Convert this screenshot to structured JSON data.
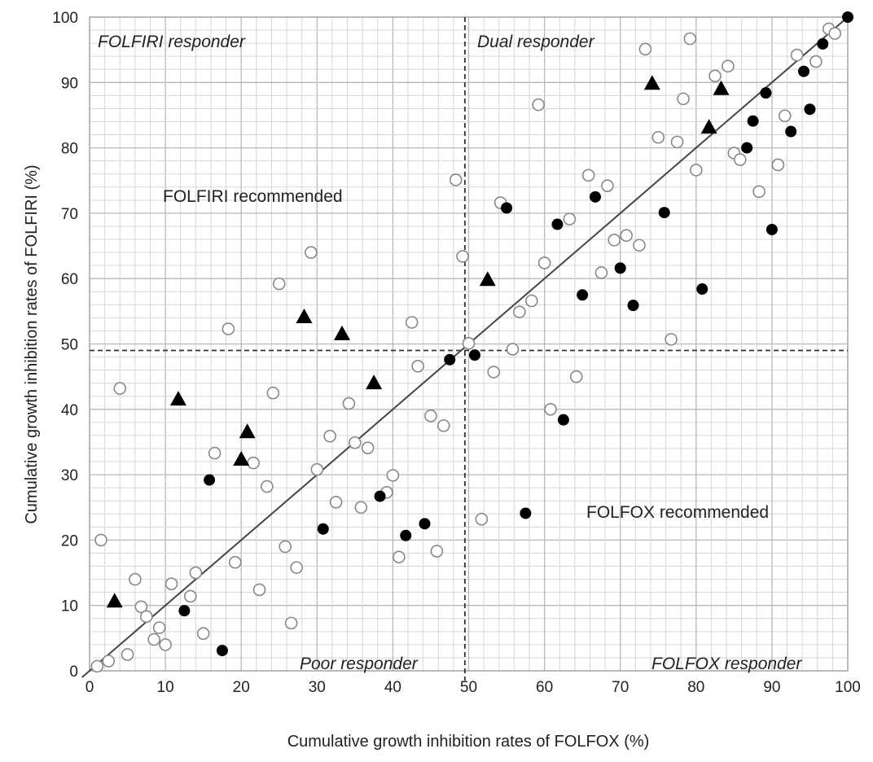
{
  "chart_data": {
    "type": "scatter",
    "title": "",
    "xlabel": "Cumulative growth inhibition rates of FOLFOX (%)",
    "ylabel": "Cumulative growth inhibition rates of FOLFIRI (%)",
    "xlim": [
      0,
      100
    ],
    "ylim": [
      0,
      100
    ],
    "xticks": [
      "0",
      "10",
      "20",
      "30",
      "40",
      "50",
      "60",
      "70",
      "80",
      "90",
      "100"
    ],
    "yticks": [
      "0",
      "10",
      "20",
      "30",
      "40",
      "50",
      "60",
      "70",
      "80",
      "90",
      "100"
    ],
    "grid": true,
    "thresholds": {
      "x": 49.5,
      "y": 49
    },
    "diagonal": [
      [
        0,
        0
      ],
      [
        100,
        100
      ]
    ],
    "annotations": {
      "folfiri_responder": "FOLFIRI responder",
      "dual_responder": "Dual responder",
      "folfiri_recommended": "FOLFIRI recommended",
      "folfox_recommended": "FOLFOX recommended",
      "poor_responder": "Poor responder",
      "folfox_responder": "FOLFOX responder"
    },
    "series": [
      {
        "marker": "open-circle",
        "color": "#888888",
        "points": [
          [
            1,
            0.7
          ],
          [
            1.5,
            20
          ],
          [
            2.5,
            1.5
          ],
          [
            4,
            43.2
          ],
          [
            5,
            2.5
          ],
          [
            6,
            14
          ],
          [
            6.8,
            9.8
          ],
          [
            7.5,
            8.3
          ],
          [
            8.5,
            4.8
          ],
          [
            9.2,
            6.6
          ],
          [
            10,
            4
          ],
          [
            10.8,
            13.3
          ],
          [
            13.3,
            11.4
          ],
          [
            14,
            15
          ],
          [
            15,
            5.7
          ],
          [
            16.5,
            33.3
          ],
          [
            18.3,
            52.3
          ],
          [
            19.2,
            16.6
          ],
          [
            21.6,
            31.8
          ],
          [
            22.4,
            12.4
          ],
          [
            23.4,
            28.2
          ],
          [
            24.2,
            42.5
          ],
          [
            25,
            59.2
          ],
          [
            25.8,
            19
          ],
          [
            26.6,
            7.3
          ],
          [
            27.3,
            15.8
          ],
          [
            29.2,
            64
          ],
          [
            30,
            30.8
          ],
          [
            31.7,
            35.9
          ],
          [
            32.5,
            25.8
          ],
          [
            34.2,
            40.9
          ],
          [
            35,
            34.9
          ],
          [
            35.8,
            25
          ],
          [
            36.7,
            34.1
          ],
          [
            39.2,
            27.3
          ],
          [
            40,
            29.9
          ],
          [
            40.8,
            17.4
          ],
          [
            42.5,
            53.3
          ],
          [
            43.3,
            46.6
          ],
          [
            45,
            39
          ],
          [
            45.8,
            18.3
          ],
          [
            46.7,
            37.5
          ],
          [
            48.3,
            75.1
          ],
          [
            49.2,
            63.4
          ],
          [
            50,
            50.1
          ],
          [
            51.7,
            23.2
          ],
          [
            53.3,
            45.7
          ],
          [
            54.2,
            71.6
          ],
          [
            55.8,
            49.2
          ],
          [
            56.7,
            54.9
          ],
          [
            58.3,
            56.6
          ],
          [
            59.2,
            86.6
          ],
          [
            60,
            62.4
          ],
          [
            60.8,
            40
          ],
          [
            63.3,
            69.1
          ],
          [
            64.2,
            45
          ],
          [
            65.8,
            75.8
          ],
          [
            67.5,
            60.9
          ],
          [
            68.3,
            74.2
          ],
          [
            69.2,
            65.9
          ],
          [
            70.8,
            66.6
          ],
          [
            72.5,
            65.1
          ],
          [
            73.3,
            95.1
          ],
          [
            75,
            81.6
          ],
          [
            76.7,
            50.7
          ],
          [
            77.5,
            80.9
          ],
          [
            78.3,
            87.5
          ],
          [
            79.2,
            96.7
          ],
          [
            80,
            76.6
          ],
          [
            82.5,
            91
          ],
          [
            84.2,
            92.5
          ],
          [
            85,
            79.2
          ],
          [
            85.8,
            78.2
          ],
          [
            88.3,
            73.3
          ],
          [
            90.8,
            77.4
          ],
          [
            91.7,
            84.9
          ],
          [
            93.3,
            94.2
          ],
          [
            95.8,
            93.2
          ],
          [
            97.5,
            98.2
          ],
          [
            98.3,
            97.5
          ]
        ]
      },
      {
        "marker": "filled-circle",
        "color": "#000000",
        "points": [
          [
            12.5,
            9.2
          ],
          [
            15.8,
            29.2
          ],
          [
            17.5,
            3.1
          ],
          [
            30.8,
            21.7
          ],
          [
            38.3,
            26.7
          ],
          [
            41.7,
            20.7
          ],
          [
            44.2,
            22.5
          ],
          [
            47.5,
            47.6
          ],
          [
            50.8,
            48.3
          ],
          [
            55,
            70.8
          ],
          [
            57.5,
            24.1
          ],
          [
            61.7,
            68.3
          ],
          [
            62.5,
            38.4
          ],
          [
            65,
            57.5
          ],
          [
            66.7,
            72.5
          ],
          [
            70,
            61.6
          ],
          [
            71.7,
            55.9
          ],
          [
            75.8,
            70.1
          ],
          [
            80.8,
            58.4
          ],
          [
            86.7,
            80
          ],
          [
            87.5,
            84.1
          ],
          [
            89.2,
            88.4
          ],
          [
            90,
            67.5
          ],
          [
            92.5,
            82.5
          ],
          [
            94.2,
            91.7
          ],
          [
            95,
            85.9
          ],
          [
            96.7,
            95.9
          ],
          [
            100,
            100
          ]
        ]
      },
      {
        "marker": "filled-triangle",
        "color": "#000000",
        "points": [
          [
            3.3,
            10.8
          ],
          [
            11.7,
            41.7
          ],
          [
            20,
            32.5
          ],
          [
            20.8,
            36.7
          ],
          [
            28.3,
            54.3
          ],
          [
            33.3,
            51.7
          ],
          [
            37.5,
            44.2
          ],
          [
            52.5,
            60
          ],
          [
            74.2,
            90
          ],
          [
            81.7,
            83.3
          ],
          [
            83.3,
            89.2
          ]
        ]
      }
    ]
  }
}
